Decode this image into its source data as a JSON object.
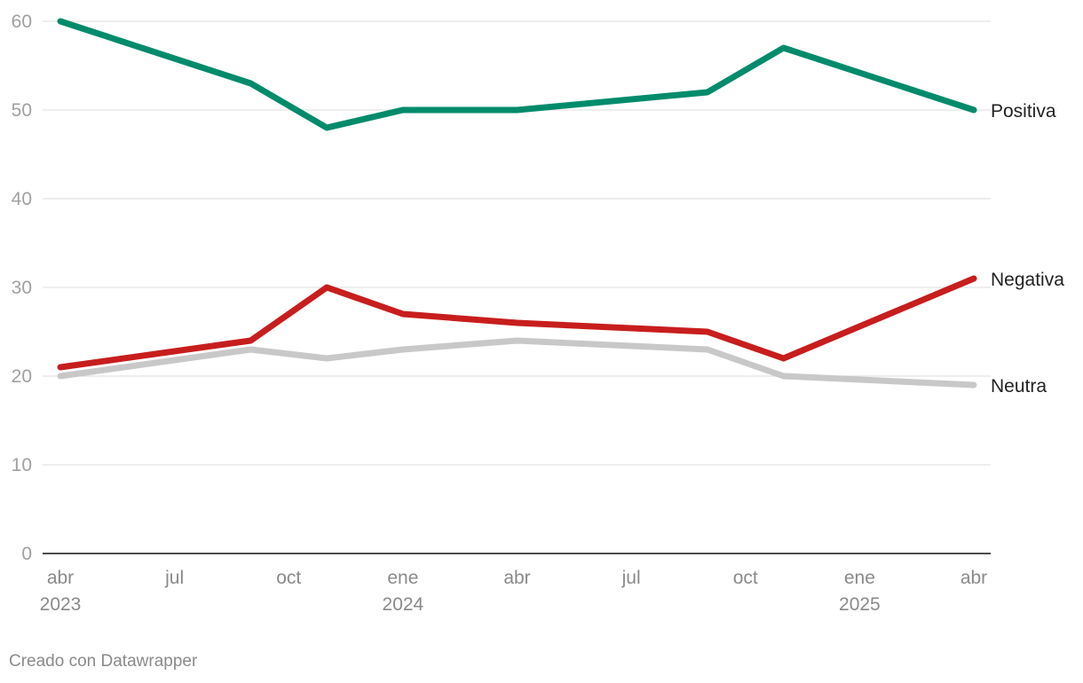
{
  "chart_data": {
    "type": "line",
    "x": [
      "2023-04",
      "2023-09",
      "2023-11",
      "2024-01",
      "2024-04",
      "2024-09",
      "2024-11",
      "2025-04"
    ],
    "series": [
      {
        "name": "Positiva",
        "color": "#008b6b",
        "values": [
          60,
          53,
          48,
          50,
          50,
          52,
          57,
          50
        ]
      },
      {
        "name": "Negativa",
        "color": "#c71e1d",
        "values": [
          21,
          24,
          30,
          27,
          26,
          25,
          22,
          31
        ]
      },
      {
        "name": "Neutra",
        "color": "#c8c8c8",
        "values": [
          20,
          23,
          22,
          23,
          24,
          23,
          20,
          19
        ]
      }
    ],
    "ylim": [
      0,
      60
    ],
    "yticks": [
      "0",
      "10",
      "20",
      "30",
      "40",
      "50",
      "60"
    ],
    "xticks": [
      {
        "date": "2023-04",
        "label": "abr",
        "year": "2023"
      },
      {
        "date": "2023-07",
        "label": "jul",
        "year": ""
      },
      {
        "date": "2023-10",
        "label": "oct",
        "year": ""
      },
      {
        "date": "2024-01",
        "label": "ene",
        "year": "2024"
      },
      {
        "date": "2024-04",
        "label": "abr",
        "year": ""
      },
      {
        "date": "2024-07",
        "label": "jul",
        "year": ""
      },
      {
        "date": "2024-10",
        "label": "oct",
        "year": ""
      },
      {
        "date": "2025-01",
        "label": "ene",
        "year": "2025"
      },
      {
        "date": "2025-04",
        "label": "abr",
        "year": ""
      }
    ],
    "grid": true,
    "legend": "direct labels at line ends"
  },
  "footer": {
    "credit": "Creado con Datawrapper"
  }
}
